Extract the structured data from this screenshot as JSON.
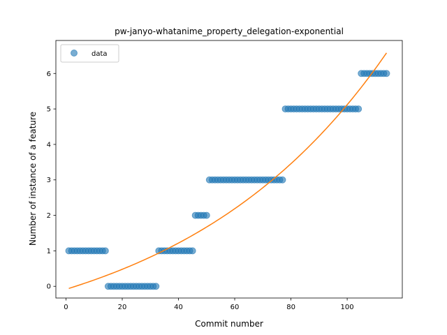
{
  "chart_data": {
    "type": "scatter",
    "title": "pw-janyo-whatanime_property_delegation-exponential",
    "xlabel": "Commit number",
    "ylabel": "Number of instance of a feature",
    "xlim": [
      -3.6,
      119.6
    ],
    "ylim": [
      -0.33,
      6.93
    ],
    "xticks": [
      0,
      20,
      40,
      60,
      80,
      100
    ],
    "yticks": [
      0,
      1,
      2,
      3,
      4,
      5,
      6
    ],
    "legend": {
      "position": "top-left",
      "entries": [
        "data"
      ]
    },
    "colors": {
      "data": "#1f77b4",
      "fit": "#ff7f0e"
    },
    "series": [
      {
        "name": "data",
        "kind": "scatter",
        "points": [
          [
            1,
            1
          ],
          [
            2,
            1
          ],
          [
            3,
            1
          ],
          [
            4,
            1
          ],
          [
            5,
            1
          ],
          [
            6,
            1
          ],
          [
            7,
            1
          ],
          [
            8,
            1
          ],
          [
            9,
            1
          ],
          [
            10,
            1
          ],
          [
            11,
            1
          ],
          [
            12,
            1
          ],
          [
            13,
            1
          ],
          [
            14,
            1
          ],
          [
            15,
            0
          ],
          [
            16,
            0
          ],
          [
            17,
            0
          ],
          [
            18,
            0
          ],
          [
            19,
            0
          ],
          [
            20,
            0
          ],
          [
            21,
            0
          ],
          [
            22,
            0
          ],
          [
            23,
            0
          ],
          [
            24,
            0
          ],
          [
            25,
            0
          ],
          [
            26,
            0
          ],
          [
            27,
            0
          ],
          [
            28,
            0
          ],
          [
            29,
            0
          ],
          [
            30,
            0
          ],
          [
            31,
            0
          ],
          [
            32,
            0
          ],
          [
            33,
            1
          ],
          [
            34,
            1
          ],
          [
            35,
            1
          ],
          [
            36,
            1
          ],
          [
            37,
            1
          ],
          [
            38,
            1
          ],
          [
            39,
            1
          ],
          [
            40,
            1
          ],
          [
            41,
            1
          ],
          [
            42,
            1
          ],
          [
            43,
            1
          ],
          [
            44,
            1
          ],
          [
            45,
            1
          ],
          [
            46,
            2
          ],
          [
            47,
            2
          ],
          [
            48,
            2
          ],
          [
            49,
            2
          ],
          [
            50,
            2
          ],
          [
            51,
            3
          ],
          [
            52,
            3
          ],
          [
            53,
            3
          ],
          [
            54,
            3
          ],
          [
            55,
            3
          ],
          [
            56,
            3
          ],
          [
            57,
            3
          ],
          [
            58,
            3
          ],
          [
            59,
            3
          ],
          [
            60,
            3
          ],
          [
            61,
            3
          ],
          [
            62,
            3
          ],
          [
            63,
            3
          ],
          [
            64,
            3
          ],
          [
            65,
            3
          ],
          [
            66,
            3
          ],
          [
            67,
            3
          ],
          [
            68,
            3
          ],
          [
            69,
            3
          ],
          [
            70,
            3
          ],
          [
            71,
            3
          ],
          [
            72,
            3
          ],
          [
            73,
            3
          ],
          [
            74,
            3
          ],
          [
            75,
            3
          ],
          [
            76,
            3
          ],
          [
            77,
            3
          ],
          [
            78,
            5
          ],
          [
            79,
            5
          ],
          [
            80,
            5
          ],
          [
            81,
            5
          ],
          [
            82,
            5
          ],
          [
            83,
            5
          ],
          [
            84,
            5
          ],
          [
            85,
            5
          ],
          [
            86,
            5
          ],
          [
            87,
            5
          ],
          [
            88,
            5
          ],
          [
            89,
            5
          ],
          [
            90,
            5
          ],
          [
            91,
            5
          ],
          [
            92,
            5
          ],
          [
            93,
            5
          ],
          [
            94,
            5
          ],
          [
            95,
            5
          ],
          [
            96,
            5
          ],
          [
            97,
            5
          ],
          [
            98,
            5
          ],
          [
            99,
            5
          ],
          [
            100,
            5
          ],
          [
            101,
            5
          ],
          [
            102,
            5
          ],
          [
            103,
            5
          ],
          [
            104,
            5
          ],
          [
            105,
            6
          ],
          [
            106,
            6
          ],
          [
            107,
            6
          ],
          [
            108,
            6
          ],
          [
            109,
            6
          ],
          [
            110,
            6
          ],
          [
            111,
            6
          ],
          [
            112,
            6
          ],
          [
            113,
            6
          ],
          [
            114,
            6
          ]
        ]
      },
      {
        "kind": "line",
        "points": [
          [
            1,
            -0.06
          ],
          [
            10,
            0.26
          ],
          [
            20,
            0.65
          ],
          [
            30,
            1.09
          ],
          [
            40,
            1.6
          ],
          [
            50,
            2.18
          ],
          [
            60,
            2.83
          ],
          [
            70,
            3.56
          ],
          [
            80,
            4.39
          ],
          [
            90,
            5.32
          ],
          [
            100,
            5.31
          ],
          [
            114,
            6.58
          ]
        ]
      }
    ]
  }
}
